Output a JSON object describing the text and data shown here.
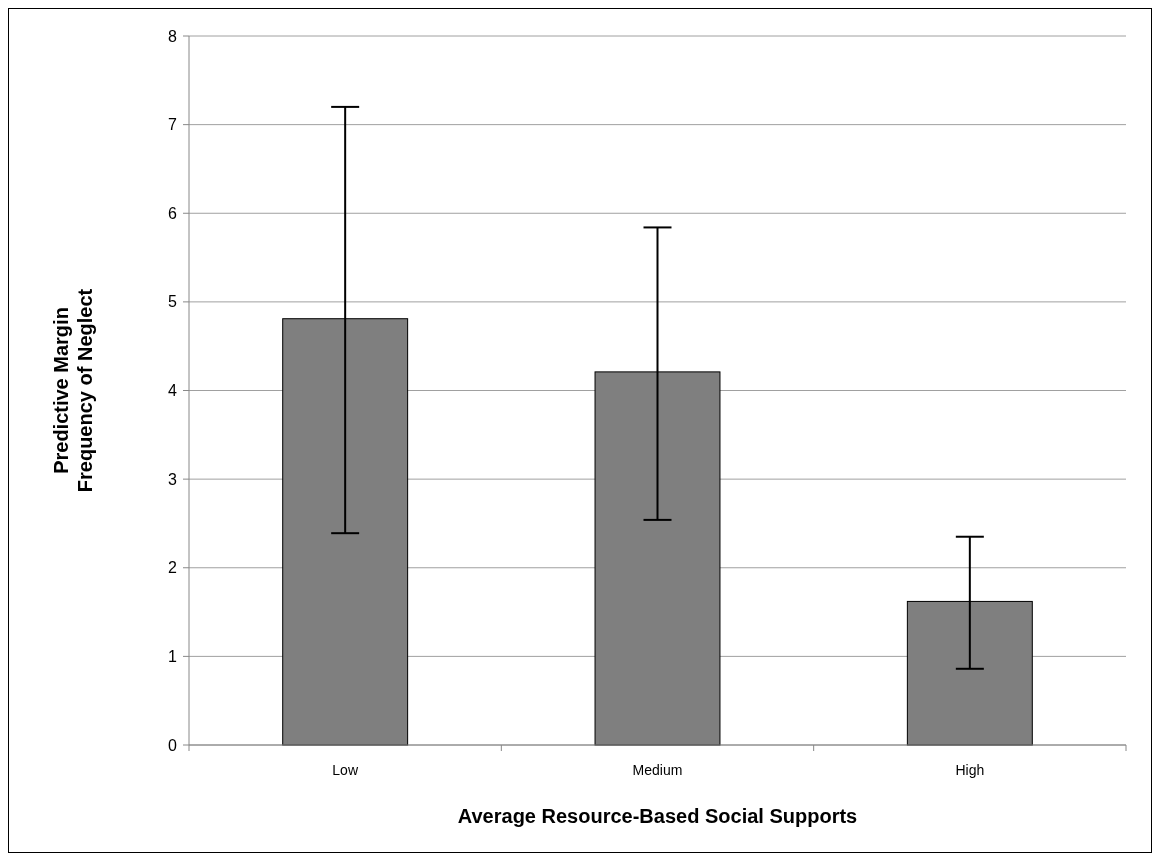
{
  "chart_data": {
    "type": "bar",
    "xlabel": "Average Resource-Based Social Supports",
    "ylabel": "Predictive Margin\nFrequency of Neglect",
    "categories": [
      "Low",
      "Medium",
      "High"
    ],
    "values": [
      4.81,
      4.21,
      1.62
    ],
    "errors": [
      [
        2.39,
        7.2
      ],
      [
        2.54,
        5.84
      ],
      [
        0.86,
        2.35
      ]
    ],
    "color": "#7f7f7f",
    "ylim": [
      0,
      8
    ],
    "yticks": [
      0,
      1,
      2,
      3,
      4,
      5,
      6,
      7,
      8
    ],
    "grid": "y"
  }
}
